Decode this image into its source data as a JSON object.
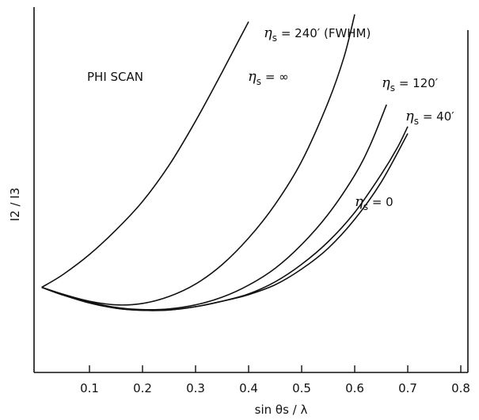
{
  "chart_data": {
    "type": "line",
    "title": "",
    "annotation": "PHI SCAN",
    "xlabel": "sin θs / λ",
    "ylabel": "I2 / I3",
    "xlim": [
      0,
      0.86
    ],
    "x_ticks": [
      "0.1",
      "0.2",
      "0.3",
      "0.4",
      "0.5",
      "0.6",
      "0.7",
      "0.8"
    ],
    "y_ticks": [],
    "grid": false,
    "series": [
      {
        "name": "ηs = ∞",
        "x": [
          0.01,
          0.05,
          0.1,
          0.15,
          0.2,
          0.25,
          0.3,
          0.35,
          0.38,
          0.4
        ],
        "y": [
          0.233,
          0.268,
          0.323,
          0.39,
          0.468,
          0.567,
          0.688,
          0.822,
          0.905,
          0.96
        ]
      },
      {
        "name": "ηs = 240′ (FWHM)",
        "x": [
          0.01,
          0.05,
          0.1,
          0.15,
          0.2,
          0.25,
          0.3,
          0.35,
          0.4,
          0.45,
          0.5,
          0.55,
          0.58,
          0.6
        ],
        "y": [
          0.233,
          0.214,
          0.195,
          0.185,
          0.189,
          0.208,
          0.242,
          0.295,
          0.368,
          0.46,
          0.578,
          0.74,
          0.864,
          0.98
        ]
      },
      {
        "name": "ηs = 120′",
        "x": [
          0.01,
          0.05,
          0.1,
          0.15,
          0.2,
          0.25,
          0.3,
          0.35,
          0.4,
          0.45,
          0.5,
          0.55,
          0.6,
          0.63,
          0.66
        ],
        "y": [
          0.233,
          0.214,
          0.193,
          0.178,
          0.172,
          0.174,
          0.185,
          0.206,
          0.239,
          0.285,
          0.35,
          0.433,
          0.54,
          0.625,
          0.733
        ]
      },
      {
        "name": "ηs = 40′",
        "x": [
          0.01,
          0.05,
          0.1,
          0.15,
          0.2,
          0.25,
          0.3,
          0.35,
          0.4,
          0.45,
          0.5,
          0.55,
          0.6,
          0.65,
          0.68,
          0.7
        ],
        "y": [
          0.233,
          0.212,
          0.191,
          0.176,
          0.17,
          0.171,
          0.18,
          0.195,
          0.215,
          0.248,
          0.296,
          0.358,
          0.438,
          0.542,
          0.614,
          0.673
        ]
      },
      {
        "name": "ηs = 0",
        "x": [
          0.01,
          0.05,
          0.1,
          0.15,
          0.2,
          0.25,
          0.3,
          0.35,
          0.4,
          0.45,
          0.5,
          0.55,
          0.6,
          0.65,
          0.7
        ],
        "y": [
          0.233,
          0.212,
          0.19,
          0.176,
          0.17,
          0.171,
          0.18,
          0.195,
          0.213,
          0.24,
          0.283,
          0.34,
          0.419,
          0.521,
          0.654
        ]
      }
    ],
    "series_labels": [
      {
        "eta": "η",
        "sub": "s",
        "rest": " = ∞"
      },
      {
        "eta": "η",
        "sub": "s",
        "rest": " = 240′ (FWHM)"
      },
      {
        "eta": "η",
        "sub": "s",
        "rest": " = 120′"
      },
      {
        "eta": "η",
        "sub": "s",
        "rest": " = 40′"
      },
      {
        "eta": "η",
        "sub": "s",
        "rest": " = 0"
      }
    ],
    "colors": {
      "ink": "#111111",
      "background": "#ffffff"
    }
  }
}
